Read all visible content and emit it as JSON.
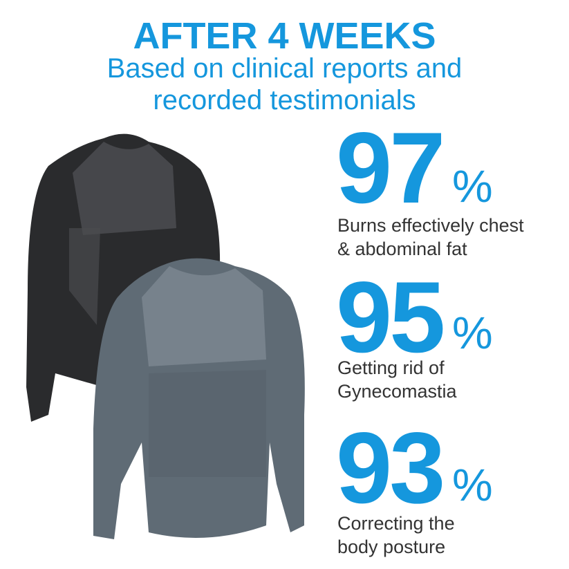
{
  "header": {
    "title": "AFTER 4 WEEKS",
    "subtitle_line1": "Based on clinical reports and",
    "subtitle_line2": "recorded testimonials"
  },
  "stats": [
    {
      "value": "97",
      "unit": "%",
      "line1": "Burns effectively chest",
      "line2": "& abdominal fat"
    },
    {
      "value": "95",
      "unit": "%",
      "line1": "Getting rid of",
      "line2": "Gynecomastia"
    },
    {
      "value": "93",
      "unit": "%",
      "line1": "Correcting the",
      "line2": "body posture"
    }
  ],
  "colors": {
    "accent": "#1597dd",
    "text": "#333333",
    "black_shirt": "#2a2b2d",
    "gray_shirt": "#5f6b75"
  }
}
